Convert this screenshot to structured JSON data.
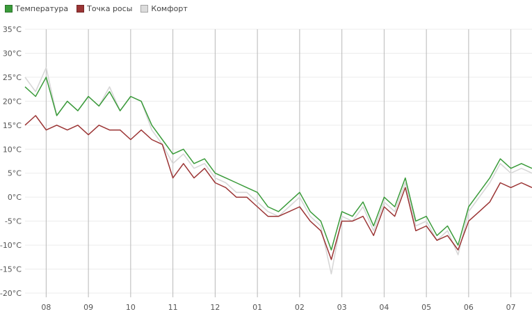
{
  "chart_data": {
    "type": "line",
    "title": "",
    "xlabel": "",
    "ylabel": "",
    "y_unit": "°C",
    "ylim": [
      -20,
      35
    ],
    "y_ticks": [
      35,
      30,
      25,
      20,
      15,
      10,
      5,
      0,
      -5,
      -10,
      -15,
      -20
    ],
    "y_tick_labels": [
      "35°C",
      "30°C",
      "25°C",
      "20°C",
      "15°C",
      "10°C",
      "5°C",
      "0°C",
      "-5°C",
      "-10°C",
      "-15°C",
      "-20°C"
    ],
    "x_tick_labels": [
      "08",
      "09",
      "10",
      "11",
      "12",
      "01",
      "02",
      "03",
      "04",
      "05",
      "06",
      "07"
    ],
    "xlim": [
      0,
      12
    ],
    "x_ticks": [
      0.5,
      1.5,
      2.5,
      3.5,
      4.5,
      5.5,
      6.5,
      7.5,
      8.5,
      9.5,
      10.5,
      11.5
    ],
    "x": [
      0,
      0.25,
      0.5,
      0.75,
      1,
      1.25,
      1.5,
      1.75,
      2,
      2.25,
      2.5,
      2.75,
      3,
      3.25,
      3.5,
      3.75,
      4,
      4.25,
      4.5,
      4.75,
      5,
      5.25,
      5.5,
      5.75,
      6,
      6.25,
      6.5,
      6.75,
      7,
      7.25,
      7.5,
      7.75,
      8,
      8.25,
      8.5,
      8.75,
      9,
      9.25,
      9.5,
      9.75,
      10,
      10.25,
      10.5,
      10.75,
      11,
      11.25,
      11.5,
      11.75,
      12
    ],
    "legend_position": "top-left",
    "grid": true,
    "series": [
      {
        "name": "Температура",
        "color": "#3a9b3a",
        "values": [
          23,
          21,
          25,
          17,
          20,
          18,
          21,
          19,
          22,
          18,
          21,
          20,
          15,
          12,
          9,
          10,
          7,
          8,
          5,
          4,
          3,
          2,
          1,
          -2,
          -3,
          -1,
          1,
          -3,
          -5,
          -11,
          -3,
          -4,
          -1,
          -6,
          0,
          -2,
          4,
          -5,
          -4,
          -8,
          -6,
          -10,
          -2,
          1,
          4,
          8,
          6,
          7,
          6
        ]
      },
      {
        "name": "Точка росы",
        "color": "#9b3434",
        "values": [
          15,
          17,
          14,
          15,
          14,
          15,
          13,
          15,
          14,
          14,
          12,
          14,
          12,
          11,
          4,
          7,
          4,
          6,
          3,
          2,
          0,
          0,
          -2,
          -4,
          -4,
          -3,
          -2,
          -5,
          -7,
          -13,
          -5,
          -5,
          -4,
          -8,
          -2,
          -4,
          2,
          -7,
          -6,
          -9,
          -8,
          -11,
          -5,
          -3,
          -1,
          3,
          2,
          3,
          2
        ]
      },
      {
        "name": "Комфорт",
        "color": "#d7d7d7",
        "values": [
          25,
          22,
          27,
          17,
          20,
          18,
          21,
          19,
          23,
          18,
          21,
          20,
          14,
          11,
          7,
          9,
          6,
          7,
          4,
          3,
          1,
          1,
          -1,
          -3,
          -4,
          -2,
          0,
          -4,
          -6,
          -16,
          -4,
          -5,
          -2,
          -7,
          -1,
          -3,
          3,
          -6,
          -5,
          -9,
          -7,
          -12,
          -3,
          0,
          3,
          7,
          5,
          6,
          5
        ]
      }
    ]
  }
}
